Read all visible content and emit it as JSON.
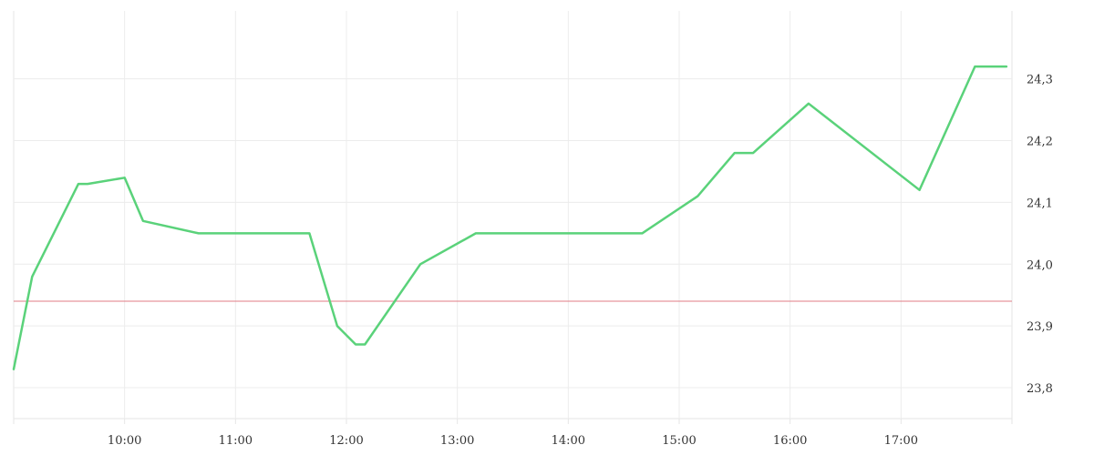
{
  "chart_data": {
    "type": "line",
    "title": "",
    "xlabel": "",
    "ylabel": "",
    "x_ticks": [
      "10:00",
      "11:00",
      "12:00",
      "13:00",
      "14:00",
      "15:00",
      "16:00",
      "17:00"
    ],
    "y_ticks": [
      "23,8",
      "23,9",
      "24,0",
      "24,1",
      "24,2",
      "24,3"
    ],
    "xlim": [
      "09:00",
      "18:00"
    ],
    "ylim": [
      23.75,
      24.41
    ],
    "grid": true,
    "reference_line": {
      "value": 23.94,
      "color": "#e07b84"
    },
    "series": [
      {
        "color": "#5ad27a",
        "points": [
          {
            "x": "09:00",
            "y": 23.83
          },
          {
            "x": "09:10",
            "y": 23.98
          },
          {
            "x": "09:35",
            "y": 24.13
          },
          {
            "x": "09:40",
            "y": 24.13
          },
          {
            "x": "10:00",
            "y": 24.14
          },
          {
            "x": "10:10",
            "y": 24.07
          },
          {
            "x": "10:40",
            "y": 24.05
          },
          {
            "x": "11:40",
            "y": 24.05
          },
          {
            "x": "11:55",
            "y": 23.9
          },
          {
            "x": "12:05",
            "y": 23.87
          },
          {
            "x": "12:10",
            "y": 23.87
          },
          {
            "x": "12:40",
            "y": 24.0
          },
          {
            "x": "13:10",
            "y": 24.05
          },
          {
            "x": "14:40",
            "y": 24.05
          },
          {
            "x": "15:10",
            "y": 24.11
          },
          {
            "x": "15:30",
            "y": 24.18
          },
          {
            "x": "15:40",
            "y": 24.18
          },
          {
            "x": "16:10",
            "y": 24.26
          },
          {
            "x": "17:10",
            "y": 24.12
          },
          {
            "x": "17:40",
            "y": 24.32
          },
          {
            "x": "17:57",
            "y": 24.32
          }
        ]
      }
    ]
  }
}
